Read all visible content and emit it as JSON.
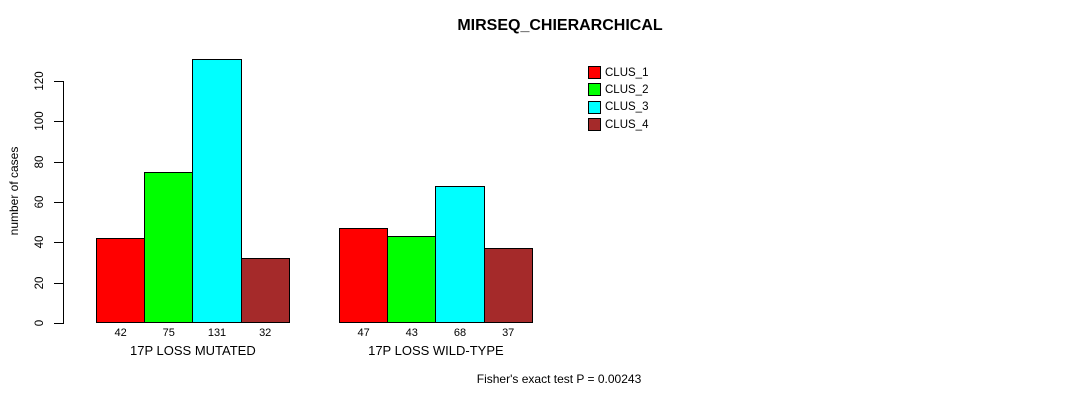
{
  "chart_data": {
    "type": "bar",
    "title": "MIRSEQ_CHIERARCHICAL",
    "ylabel": "number of cases",
    "xlabel": "",
    "categories": [
      "17P LOSS MUTATED",
      "17P LOSS WILD-TYPE"
    ],
    "series": [
      {
        "name": "CLUS_1",
        "color": "#ff0000",
        "values": [
          42,
          47
        ]
      },
      {
        "name": "CLUS_2",
        "color": "#00ff00",
        "values": [
          75,
          43
        ]
      },
      {
        "name": "CLUS_3",
        "color": "#00ffff",
        "values": [
          131,
          68
        ]
      },
      {
        "name": "CLUS_4",
        "color": "#a52a2a",
        "values": [
          32,
          37
        ]
      }
    ],
    "y_ticks": [
      0,
      20,
      40,
      60,
      80,
      100,
      120
    ],
    "ylim": [
      0,
      131
    ],
    "grid": false,
    "bar_value_labels": [
      [
        42,
        75,
        131,
        32
      ],
      [
        47,
        43,
        68,
        37
      ]
    ],
    "legend_position": "top-right",
    "legend_entries": [
      "CLUS_1",
      "CLUS_2",
      "CLUS_3",
      "CLUS_4"
    ],
    "annotation": "Fisher's exact test P = 0.00243"
  },
  "colors": {
    "background": "#ffffff",
    "axis": "#000000",
    "bar_border": "#000000",
    "text": "#000000"
  }
}
